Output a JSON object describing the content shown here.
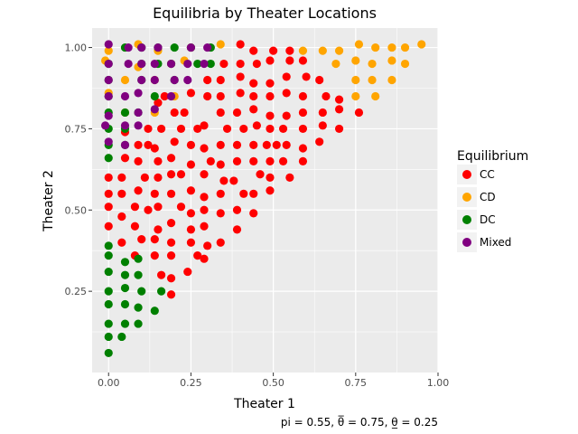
{
  "chart_data": {
    "type": "scatter",
    "title": "Equilibria by Theater Locations",
    "xlabel": "Theater 1",
    "ylabel": "Theater 2",
    "caption": "pi = 0.55, θ̅ = 0.75, θ̲ = 0.25",
    "xlim": [
      -0.05,
      1.0
    ],
    "ylim": [
      0.0,
      1.06
    ],
    "x_ticks": [
      0.0,
      0.25,
      0.5,
      0.75,
      1.0
    ],
    "x_tick_labels": [
      "0.00",
      "0.25",
      "0.50",
      "0.75",
      "1.00"
    ],
    "y_ticks": [
      0.25,
      0.5,
      0.75,
      1.0
    ],
    "y_tick_labels": [
      "0.25",
      "0.50",
      "0.75",
      "1.00"
    ],
    "grid": true,
    "legend": {
      "title": "Equilibrium",
      "placement": "right",
      "entries": [
        {
          "name": "CC",
          "color": "#ff0000"
        },
        {
          "name": "CD",
          "color": "#ffa500"
        },
        {
          "name": "DC",
          "color": "#008000"
        },
        {
          "name": "Mixed",
          "color": "#800080"
        }
      ]
    },
    "series": [
      {
        "name": "CC",
        "color": "#ff0000",
        "points": [
          [
            0.0,
            0.45
          ],
          [
            0.0,
            0.51
          ],
          [
            0.0,
            0.55
          ],
          [
            0.0,
            0.6
          ],
          [
            0.04,
            0.4
          ],
          [
            0.04,
            0.48
          ],
          [
            0.04,
            0.55
          ],
          [
            0.04,
            0.6
          ],
          [
            0.05,
            0.66
          ],
          [
            0.05,
            0.74
          ],
          [
            0.08,
            0.36
          ],
          [
            0.08,
            0.45
          ],
          [
            0.08,
            0.51
          ],
          [
            0.09,
            0.56
          ],
          [
            0.09,
            0.65
          ],
          [
            0.09,
            0.7
          ],
          [
            0.1,
            0.41
          ],
          [
            0.11,
            0.6
          ],
          [
            0.12,
            0.5
          ],
          [
            0.12,
            0.7
          ],
          [
            0.12,
            0.75
          ],
          [
            0.14,
            0.36
          ],
          [
            0.14,
            0.41
          ],
          [
            0.14,
            0.55
          ],
          [
            0.15,
            0.6
          ],
          [
            0.15,
            0.65
          ],
          [
            0.14,
            0.69
          ],
          [
            0.15,
            0.44
          ],
          [
            0.15,
            0.51
          ],
          [
            0.16,
            0.3
          ],
          [
            0.16,
            0.75
          ],
          [
            0.15,
            0.83
          ],
          [
            0.17,
            0.85
          ],
          [
            0.19,
            0.24
          ],
          [
            0.19,
            0.29
          ],
          [
            0.19,
            0.36
          ],
          [
            0.19,
            0.4
          ],
          [
            0.19,
            0.46
          ],
          [
            0.19,
            0.55
          ],
          [
            0.19,
            0.61
          ],
          [
            0.19,
            0.66
          ],
          [
            0.2,
            0.71
          ],
          [
            0.2,
            0.8
          ],
          [
            0.22,
            0.51
          ],
          [
            0.22,
            0.61
          ],
          [
            0.22,
            0.75
          ],
          [
            0.23,
            0.8
          ],
          [
            0.24,
            0.31
          ],
          [
            0.25,
            0.4
          ],
          [
            0.25,
            0.44
          ],
          [
            0.25,
            0.49
          ],
          [
            0.25,
            0.56
          ],
          [
            0.25,
            0.64
          ],
          [
            0.25,
            0.7
          ],
          [
            0.25,
            0.86
          ],
          [
            0.27,
            0.36
          ],
          [
            0.27,
            0.75
          ],
          [
            0.29,
            0.35
          ],
          [
            0.29,
            0.45
          ],
          [
            0.29,
            0.5
          ],
          [
            0.29,
            0.54
          ],
          [
            0.29,
            0.61
          ],
          [
            0.29,
            0.69
          ],
          [
            0.29,
            0.76
          ],
          [
            0.3,
            0.39
          ],
          [
            0.31,
            0.65
          ],
          [
            0.3,
            0.85
          ],
          [
            0.3,
            0.9
          ],
          [
            0.34,
            0.4
          ],
          [
            0.34,
            0.49
          ],
          [
            0.34,
            0.55
          ],
          [
            0.34,
            0.64
          ],
          [
            0.35,
            0.59
          ],
          [
            0.34,
            0.7
          ],
          [
            0.34,
            0.8
          ],
          [
            0.34,
            0.85
          ],
          [
            0.34,
            0.9
          ],
          [
            0.35,
            0.95
          ],
          [
            0.36,
            0.75
          ],
          [
            0.39,
            0.44
          ],
          [
            0.39,
            0.5
          ],
          [
            0.38,
            0.59
          ],
          [
            0.39,
            0.65
          ],
          [
            0.39,
            0.7
          ],
          [
            0.39,
            0.8
          ],
          [
            0.4,
            0.86
          ],
          [
            0.4,
            0.91
          ],
          [
            0.4,
            0.95
          ],
          [
            0.4,
            1.01
          ],
          [
            0.41,
            0.55
          ],
          [
            0.41,
            0.75
          ],
          [
            0.44,
            0.49
          ],
          [
            0.44,
            0.55
          ],
          [
            0.44,
            0.65
          ],
          [
            0.44,
            0.7
          ],
          [
            0.44,
            0.81
          ],
          [
            0.44,
            0.85
          ],
          [
            0.44,
            0.89
          ],
          [
            0.44,
            0.99
          ],
          [
            0.45,
            0.76
          ],
          [
            0.46,
            0.61
          ],
          [
            0.45,
            0.95
          ],
          [
            0.49,
            0.56
          ],
          [
            0.49,
            0.6
          ],
          [
            0.49,
            0.65
          ],
          [
            0.48,
            0.7
          ],
          [
            0.49,
            0.79
          ],
          [
            0.49,
            0.85
          ],
          [
            0.49,
            0.89
          ],
          [
            0.49,
            0.96
          ],
          [
            0.5,
            0.99
          ],
          [
            0.49,
            0.75
          ],
          [
            0.51,
            0.7
          ],
          [
            0.53,
            0.65
          ],
          [
            0.54,
            0.7
          ],
          [
            0.55,
            0.6
          ],
          [
            0.54,
            0.79
          ],
          [
            0.54,
            0.86
          ],
          [
            0.54,
            0.91
          ],
          [
            0.55,
            0.96
          ],
          [
            0.55,
            0.99
          ],
          [
            0.53,
            0.75
          ],
          [
            0.59,
            0.65
          ],
          [
            0.59,
            0.69
          ],
          [
            0.59,
            0.75
          ],
          [
            0.59,
            0.8
          ],
          [
            0.59,
            0.85
          ],
          [
            0.6,
            0.91
          ],
          [
            0.59,
            0.96
          ],
          [
            0.64,
            0.71
          ],
          [
            0.64,
            0.9
          ],
          [
            0.65,
            0.76
          ],
          [
            0.65,
            0.8
          ],
          [
            0.66,
            0.85
          ],
          [
            0.7,
            0.75
          ],
          [
            0.7,
            0.81
          ],
          [
            0.7,
            0.84
          ],
          [
            0.76,
            0.8
          ]
        ]
      },
      {
        "name": "CD",
        "color": "#ffa500",
        "points": [
          [
            -0.01,
            0.96
          ],
          [
            0.0,
            0.99
          ],
          [
            0.0,
            0.86
          ],
          [
            0.05,
            0.9
          ],
          [
            0.05,
            0.8
          ],
          [
            0.09,
            0.94
          ],
          [
            0.09,
            1.01
          ],
          [
            0.15,
            0.99
          ],
          [
            0.14,
            0.9
          ],
          [
            0.14,
            0.8
          ],
          [
            0.19,
            0.95
          ],
          [
            0.2,
            0.85
          ],
          [
            0.23,
            0.96
          ],
          [
            0.25,
            1.0
          ],
          [
            0.34,
            1.01
          ],
          [
            0.59,
            0.99
          ],
          [
            0.65,
            0.99
          ],
          [
            0.7,
            0.99
          ],
          [
            0.69,
            0.95
          ],
          [
            0.75,
            0.96
          ],
          [
            0.75,
            0.9
          ],
          [
            0.75,
            0.85
          ],
          [
            0.76,
            1.01
          ],
          [
            0.8,
            0.95
          ],
          [
            0.8,
            0.9
          ],
          [
            0.81,
            0.85
          ],
          [
            0.81,
            1.0
          ],
          [
            0.86,
            1.0
          ],
          [
            0.86,
            0.96
          ],
          [
            0.86,
            0.9
          ],
          [
            0.9,
            1.0
          ],
          [
            0.9,
            0.95
          ],
          [
            0.95,
            1.01
          ]
        ]
      },
      {
        "name": "DC",
        "color": "#008000",
        "points": [
          [
            0.0,
            0.06
          ],
          [
            0.0,
            0.11
          ],
          [
            0.0,
            0.15
          ],
          [
            0.0,
            0.21
          ],
          [
            0.0,
            0.25
          ],
          [
            0.0,
            0.31
          ],
          [
            0.0,
            0.36
          ],
          [
            0.0,
            0.39
          ],
          [
            0.0,
            0.66
          ],
          [
            0.0,
            0.7
          ],
          [
            0.0,
            0.75
          ],
          [
            0.0,
            0.8
          ],
          [
            0.0,
            0.85
          ],
          [
            0.0,
            0.9
          ],
          [
            0.0,
            0.95
          ],
          [
            0.04,
            0.11
          ],
          [
            0.05,
            0.15
          ],
          [
            0.05,
            0.21
          ],
          [
            0.05,
            0.26
          ],
          [
            0.05,
            0.3
          ],
          [
            0.05,
            0.34
          ],
          [
            0.05,
            0.7
          ],
          [
            0.05,
            0.75
          ],
          [
            0.05,
            0.8
          ],
          [
            0.05,
            1.0
          ],
          [
            0.09,
            0.15
          ],
          [
            0.09,
            0.2
          ],
          [
            0.1,
            0.25
          ],
          [
            0.09,
            0.3
          ],
          [
            0.09,
            0.35
          ],
          [
            0.09,
            0.8
          ],
          [
            0.1,
            0.9
          ],
          [
            0.1,
            0.95
          ],
          [
            0.1,
            1.0
          ],
          [
            0.14,
            0.19
          ],
          [
            0.16,
            0.25
          ],
          [
            0.14,
            0.85
          ],
          [
            0.15,
            0.95
          ],
          [
            0.15,
            1.0
          ],
          [
            0.19,
            0.95
          ],
          [
            0.2,
            0.9
          ],
          [
            0.2,
            1.0
          ],
          [
            0.25,
            1.0
          ],
          [
            0.27,
            0.95
          ],
          [
            0.31,
            0.95
          ],
          [
            0.31,
            1.0
          ]
        ]
      },
      {
        "name": "Mixed",
        "color": "#800080",
        "points": [
          [
            -0.01,
            0.76
          ],
          [
            0.0,
            0.71
          ],
          [
            0.0,
            0.79
          ],
          [
            0.0,
            0.85
          ],
          [
            0.0,
            0.9
          ],
          [
            0.0,
            0.95
          ],
          [
            0.0,
            1.01
          ],
          [
            0.05,
            0.7
          ],
          [
            0.05,
            0.76
          ],
          [
            0.05,
            0.85
          ],
          [
            0.06,
            0.95
          ],
          [
            0.06,
            1.0
          ],
          [
            0.09,
            0.76
          ],
          [
            0.09,
            0.8
          ],
          [
            0.09,
            0.86
          ],
          [
            0.1,
            0.9
          ],
          [
            0.1,
            0.95
          ],
          [
            0.1,
            1.0
          ],
          [
            0.14,
            0.81
          ],
          [
            0.14,
            0.9
          ],
          [
            0.14,
            0.95
          ],
          [
            0.15,
            1.0
          ],
          [
            0.19,
            0.85
          ],
          [
            0.19,
            0.95
          ],
          [
            0.2,
            0.9
          ],
          [
            0.24,
            0.9
          ],
          [
            0.24,
            0.95
          ],
          [
            0.25,
            1.0
          ],
          [
            0.29,
            0.95
          ],
          [
            0.3,
            1.0
          ]
        ]
      }
    ]
  }
}
